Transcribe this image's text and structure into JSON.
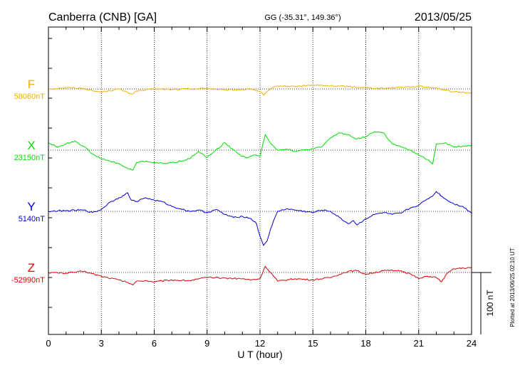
{
  "chart_data": {
    "type": "line",
    "title": "Canberra (CNB)  [GA]",
    "coords": "GG (-35.31°, 149.36°)",
    "date": "2013/05/25",
    "xlabel": "U T (hour)",
    "xlim": [
      0,
      24
    ],
    "xticks": [
      "0",
      "3",
      "6",
      "9",
      "12",
      "15",
      "18",
      "21",
      "24"
    ],
    "scale_label": "100 nT",
    "footer": "Plotted at 2013/06/25 02:10 UT",
    "grid": true,
    "series": [
      {
        "name": "F",
        "baseline_label": "58060nT",
        "baseline_nT": 58060,
        "color": "#f0b000",
        "x": [
          0,
          1,
          2,
          2.5,
          3,
          4,
          4.5,
          4.8,
          5,
          5.5,
          6,
          7,
          8,
          9,
          10,
          11,
          11.5,
          12,
          12.2,
          12.5,
          13,
          14,
          15,
          16,
          17,
          18,
          19,
          20,
          21,
          22,
          22.5,
          23,
          24
        ],
        "y": [
          0,
          2,
          1,
          -3,
          -5,
          0,
          -6,
          -8,
          -3,
          -2,
          0,
          -1,
          0,
          1,
          -2,
          -1,
          0,
          -4,
          -10,
          -2,
          5,
          4,
          6,
          5,
          4,
          2,
          1,
          3,
          4,
          2,
          -2,
          -5,
          -6
        ]
      },
      {
        "name": "X",
        "baseline_label": "23150nT",
        "baseline_nT": 23150,
        "color": "#00dd00",
        "x": [
          0,
          0.5,
          1,
          1.5,
          2,
          2.5,
          3,
          3.5,
          4,
          4.5,
          4.8,
          5,
          5.5,
          6,
          6.5,
          7,
          7.5,
          8,
          8.5,
          9,
          9.5,
          10,
          10.5,
          11,
          11.3,
          11.6,
          12,
          12.3,
          12.5,
          13,
          13.5,
          14,
          14.5,
          15,
          15.5,
          16,
          16.5,
          17,
          17.5,
          18,
          18.5,
          19,
          19.5,
          20,
          20.5,
          21,
          21.5,
          21.8,
          22,
          22.5,
          23,
          24
        ],
        "y": [
          12,
          5,
          10,
          15,
          6,
          -6,
          -14,
          -18,
          -22,
          -30,
          -32,
          -20,
          -18,
          -20,
          -22,
          -20,
          -18,
          -14,
          -2,
          -12,
          0,
          12,
          0,
          -10,
          -12,
          -8,
          -10,
          25,
          15,
          0,
          2,
          -2,
          0,
          2,
          5,
          20,
          28,
          25,
          18,
          22,
          30,
          28,
          10,
          5,
          0,
          -8,
          -15,
          -22,
          10,
          12,
          5,
          8
        ]
      },
      {
        "name": "Y",
        "baseline_label": "5140nT",
        "baseline_nT": 5140,
        "color": "#0000dd",
        "x": [
          0,
          1,
          2,
          2.5,
          3,
          3.5,
          4,
          4.3,
          4.5,
          4.7,
          5,
          5.5,
          6,
          6.5,
          7,
          7.5,
          8,
          8.5,
          9,
          9.5,
          10,
          10.5,
          11,
          11.5,
          11.8,
          12,
          12.2,
          12.4,
          12.6,
          13,
          13.5,
          14,
          15,
          15.5,
          16,
          16.5,
          17,
          17.3,
          17.5,
          18,
          18.5,
          19,
          19.5,
          20,
          20.5,
          21,
          21.5,
          21.8,
          22,
          22.5,
          23,
          23.5,
          24
        ],
        "y": [
          0,
          1,
          2,
          -2,
          3,
          15,
          22,
          26,
          30,
          18,
          16,
          22,
          18,
          15,
          8,
          4,
          0,
          2,
          -2,
          3,
          -5,
          -10,
          -8,
          -12,
          -20,
          -40,
          -55,
          -48,
          -28,
          0,
          4,
          2,
          -2,
          2,
          0,
          -10,
          -20,
          -15,
          -22,
          -12,
          -5,
          -2,
          -5,
          -3,
          5,
          10,
          20,
          25,
          32,
          20,
          12,
          8,
          -3
        ]
      },
      {
        "name": "Z",
        "baseline_label": "-52990nT",
        "baseline_nT": -52990,
        "color": "#dd0000",
        "x": [
          0,
          1,
          2,
          3,
          4,
          4.5,
          4.8,
          5,
          5.5,
          6,
          7,
          8,
          9,
          10,
          11,
          11.5,
          12,
          12.3,
          12.6,
          13,
          14,
          15,
          16,
          16.5,
          17,
          17.5,
          18,
          19,
          20,
          20.5,
          21,
          21.5,
          22,
          22.3,
          22.6,
          23,
          24
        ],
        "y": [
          0,
          -1,
          2,
          -6,
          -12,
          -16,
          -20,
          -14,
          -13,
          -15,
          -12,
          -13,
          -8,
          -9,
          -10,
          -12,
          -10,
          10,
          0,
          -14,
          -10,
          -12,
          -8,
          -3,
          2,
          3,
          -3,
          3,
          3,
          -2,
          -10,
          -6,
          -8,
          -15,
          -2,
          6,
          8
        ]
      }
    ]
  }
}
